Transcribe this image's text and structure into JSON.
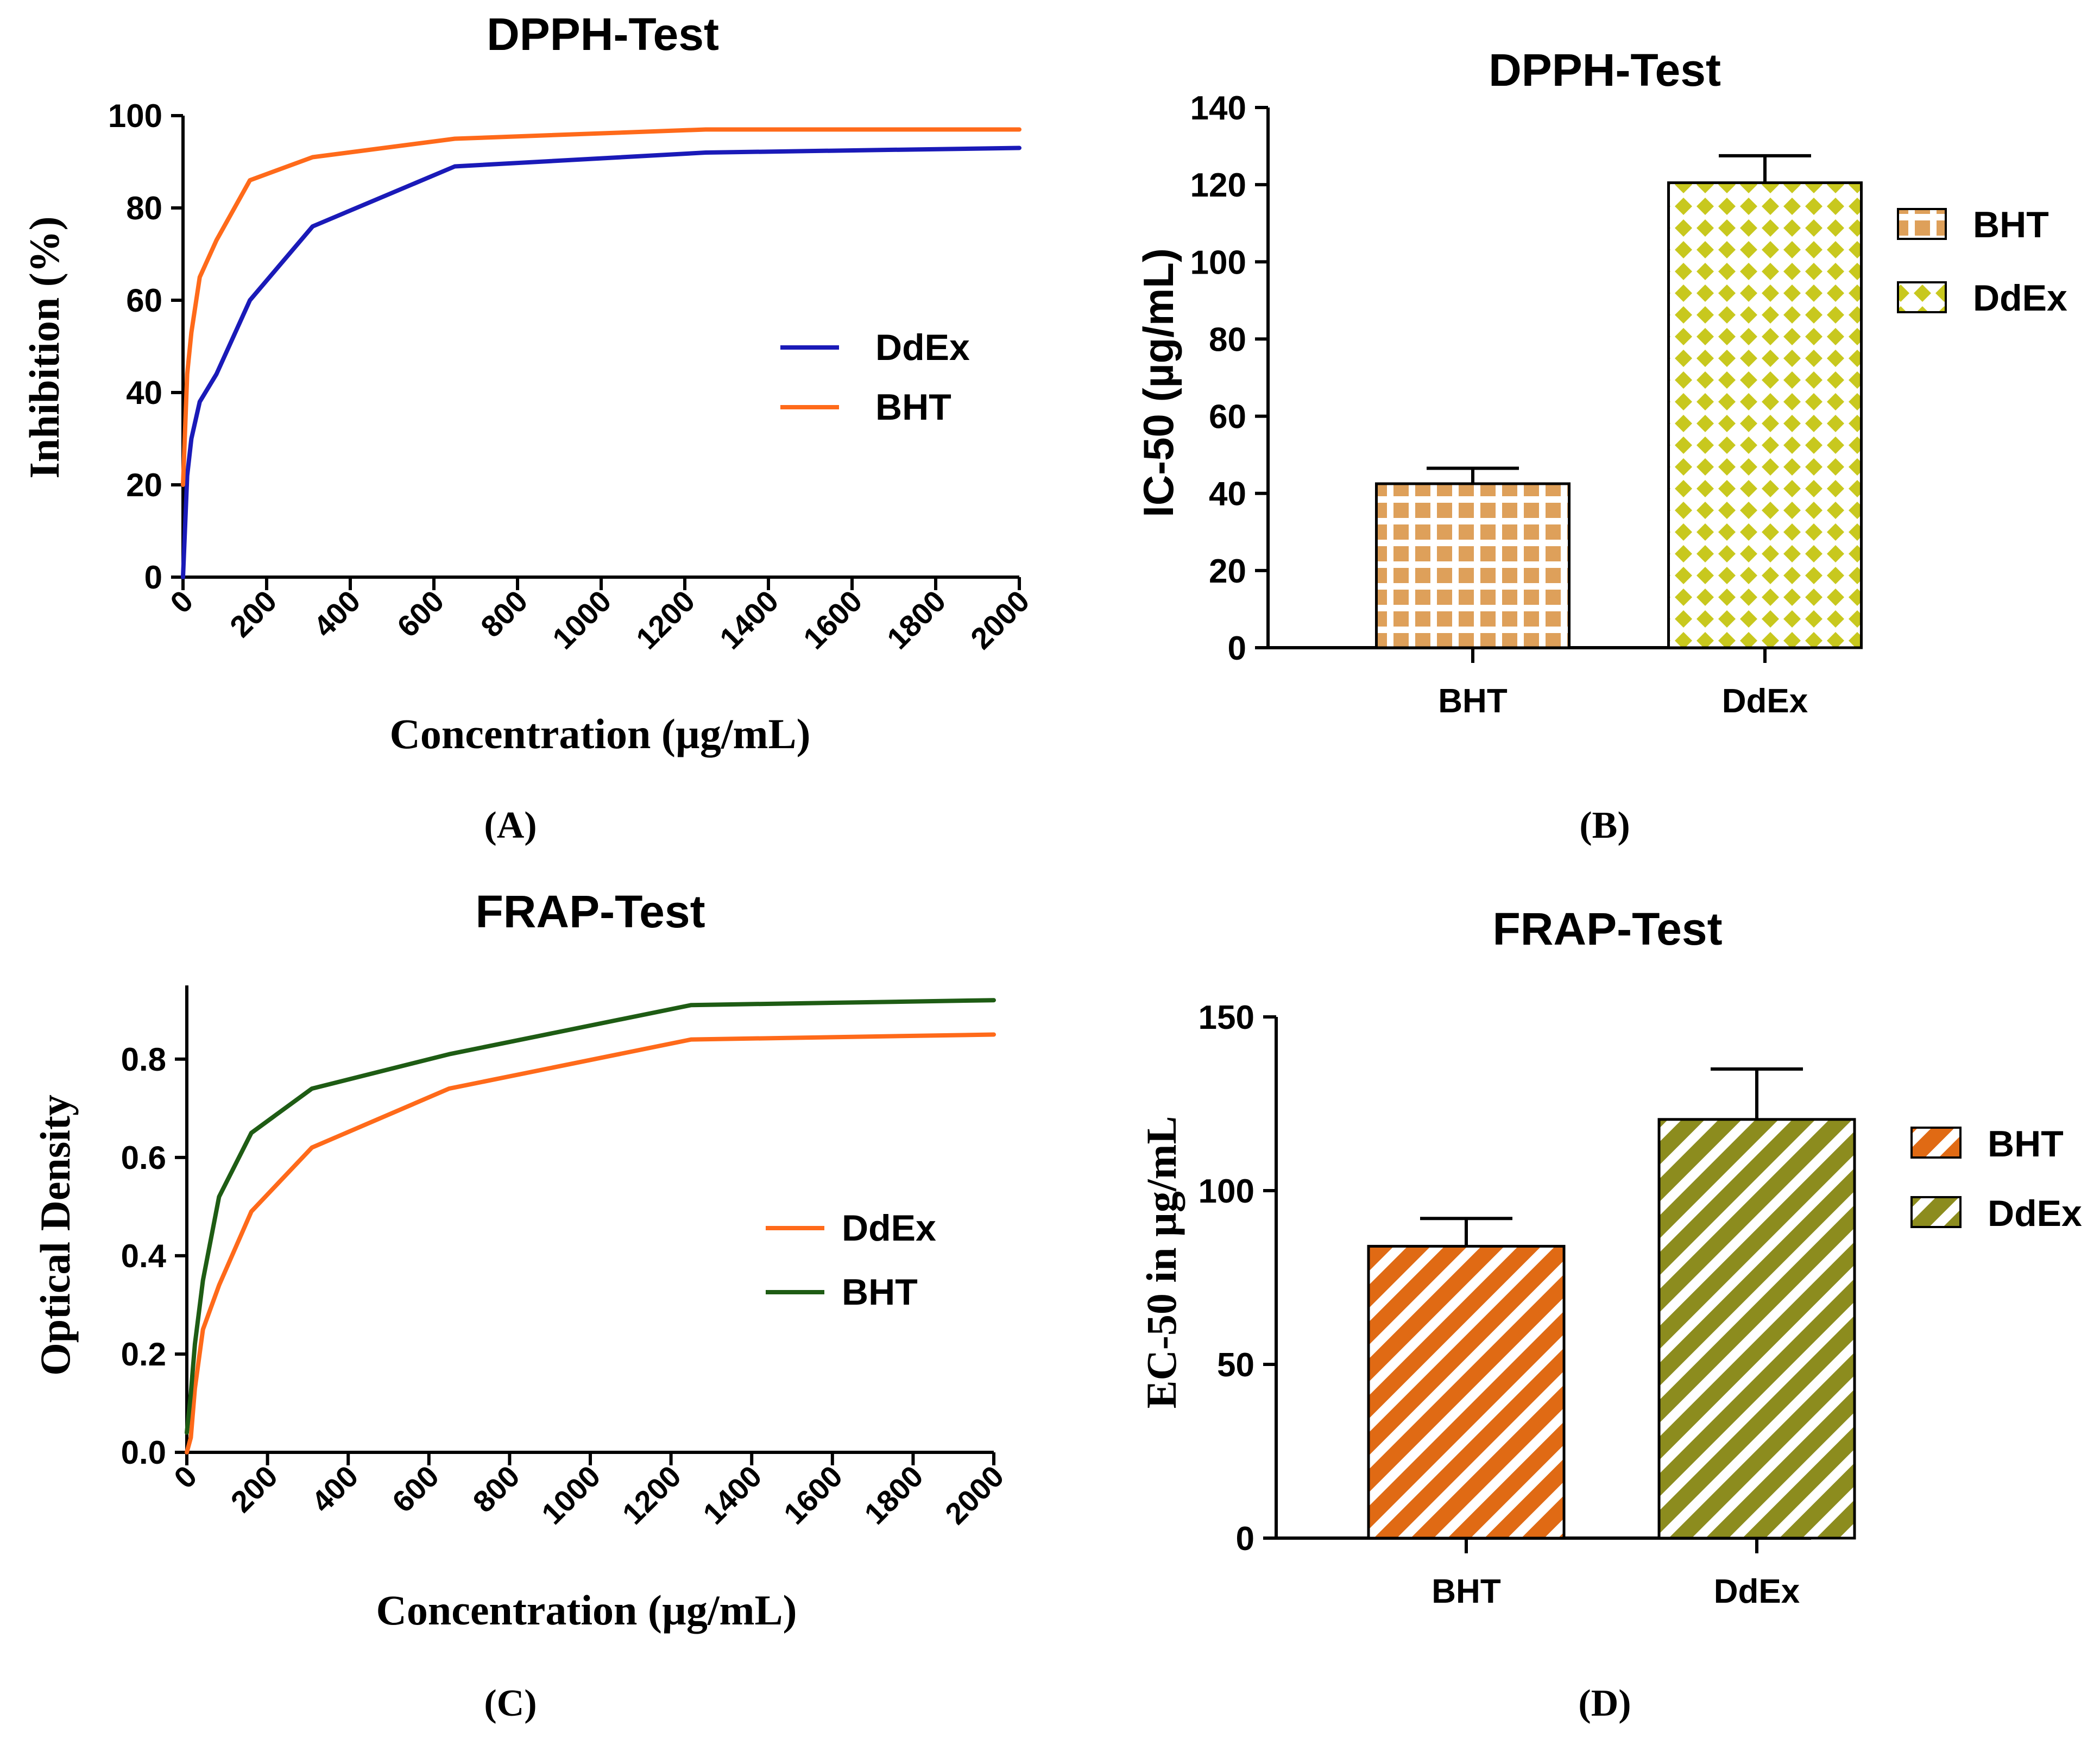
{
  "colors": {
    "blue": "#1a1ab8",
    "orange": "#ff6a1a",
    "green": "#1e5c14",
    "bht_checker": "#dea05a",
    "ddex_diamond": "#c8c81e",
    "bht_stripe": "#e06a14",
    "ddex_stripe": "#8c8c1e"
  },
  "chart_data": [
    {
      "panel": "A",
      "panel_label": "(A)",
      "type": "line",
      "title": "DPPH-Test",
      "xlabel": "Concentration (µg/mL)",
      "ylabel": "Inhibition (%)",
      "xlim": [
        0,
        2000
      ],
      "ylim": [
        0,
        100
      ],
      "xticks": [
        0,
        200,
        400,
        600,
        800,
        1000,
        1200,
        1400,
        1600,
        1800,
        2000
      ],
      "yticks": [
        0,
        20,
        40,
        60,
        80,
        100
      ],
      "legend_position": "right",
      "series": [
        {
          "name": "DdEx",
          "color": "#1a1ab8",
          "points": [
            [
              0,
              0
            ],
            [
              10,
              22
            ],
            [
              20,
              30
            ],
            [
              40,
              38
            ],
            [
              80,
              44
            ],
            [
              160,
              60
            ],
            [
              310,
              76
            ],
            [
              650,
              89
            ],
            [
              1250,
              92
            ],
            [
              2000,
              93
            ]
          ]
        },
        {
          "name": "BHT",
          "color": "#ff6a1a",
          "points": [
            [
              0,
              20
            ],
            [
              10,
              44
            ],
            [
              20,
              53
            ],
            [
              40,
              65
            ],
            [
              80,
              73
            ],
            [
              160,
              86
            ],
            [
              310,
              91
            ],
            [
              650,
              95
            ],
            [
              1250,
              97
            ],
            [
              2000,
              97
            ]
          ]
        }
      ]
    },
    {
      "panel": "B",
      "panel_label": "(B)",
      "type": "bar",
      "title": "DPPH-Test",
      "xlabel": "",
      "ylabel": "IC-50 (µg/mL)",
      "ylim": [
        0,
        140
      ],
      "yticks": [
        0,
        20,
        40,
        60,
        80,
        100,
        120,
        140
      ],
      "categories": [
        "BHT",
        "DdEx"
      ],
      "values": [
        42.5,
        120.5
      ],
      "errors": [
        4,
        7
      ],
      "fills": [
        "checker",
        "diamond"
      ],
      "legend_position": "right",
      "legend": [
        "BHT",
        "DdEx"
      ]
    },
    {
      "panel": "C",
      "panel_label": "(C)",
      "type": "line",
      "title": "FRAP-Test",
      "xlabel": "Concentration (µg/mL)",
      "ylabel": "Optical Density",
      "xlim": [
        0,
        2000
      ],
      "ylim": [
        0,
        0.95
      ],
      "xticks": [
        0,
        200,
        400,
        600,
        800,
        1000,
        1200,
        1400,
        1600,
        1800,
        2000
      ],
      "yticks": [
        "0.0",
        "0.2",
        "0.4",
        "0.6",
        "0.8"
      ],
      "legend_position": "right",
      "series": [
        {
          "name": "DdEx",
          "color": "#ff6a1a",
          "points": [
            [
              0,
              0
            ],
            [
              10,
              0.03
            ],
            [
              20,
              0.13
            ],
            [
              40,
              0.25
            ],
            [
              80,
              0.34
            ],
            [
              160,
              0.49
            ],
            [
              310,
              0.62
            ],
            [
              650,
              0.74
            ],
            [
              1250,
              0.84
            ],
            [
              2000,
              0.85
            ]
          ]
        },
        {
          "name": "BHT",
          "color": "#1e5c14",
          "points": [
            [
              0,
              0.04
            ],
            [
              10,
              0.12
            ],
            [
              20,
              0.22
            ],
            [
              40,
              0.35
            ],
            [
              80,
              0.52
            ],
            [
              160,
              0.65
            ],
            [
              310,
              0.74
            ],
            [
              650,
              0.81
            ],
            [
              1250,
              0.91
            ],
            [
              2000,
              0.92
            ]
          ]
        }
      ]
    },
    {
      "panel": "D",
      "panel_label": "(D)",
      "type": "bar",
      "title": "FRAP-Test",
      "xlabel": "",
      "ylabel": "EC-50 in µg/mL",
      "ylim": [
        0,
        150
      ],
      "yticks": [
        0,
        50,
        100,
        150
      ],
      "categories": [
        "BHT",
        "DdEx"
      ],
      "values": [
        84,
        120.5
      ],
      "errors": [
        8,
        14.5
      ],
      "fills": [
        "stripe-orange",
        "stripe-olive"
      ],
      "legend_position": "right",
      "legend": [
        "BHT",
        "DdEx"
      ]
    }
  ]
}
